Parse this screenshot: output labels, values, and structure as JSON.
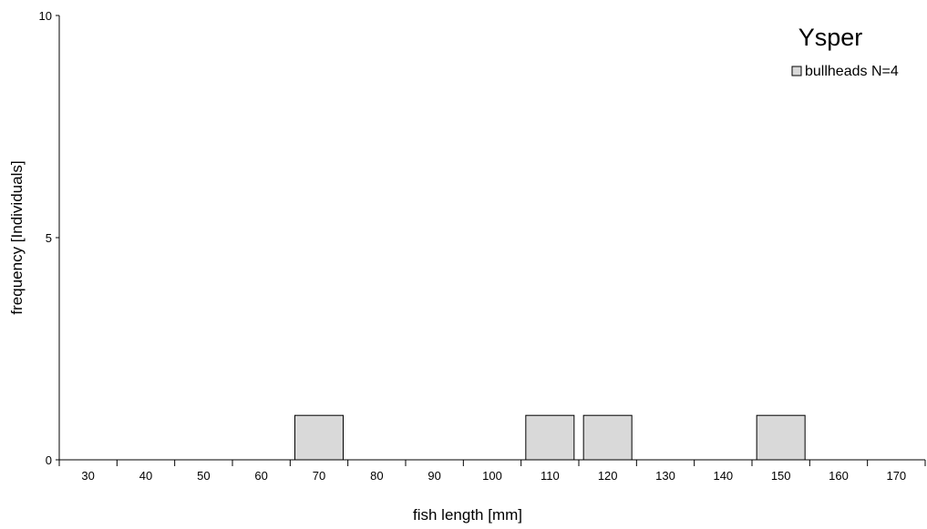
{
  "chart_data": {
    "type": "bar",
    "title": "Ysper",
    "xlabel": "fish length [mm]",
    "ylabel": "frequency [Individuals]",
    "categories": [
      "30",
      "40",
      "50",
      "60",
      "70",
      "80",
      "90",
      "100",
      "110",
      "120",
      "130",
      "140",
      "150",
      "160",
      "170"
    ],
    "series": [
      {
        "name": "bullheads N=4",
        "values": [
          0,
          0,
          0,
          0,
          1,
          0,
          0,
          0,
          1,
          1,
          0,
          0,
          1,
          0,
          0
        ],
        "color": "#d9d9d9"
      }
    ],
    "ylim": [
      0,
      10
    ],
    "yticks": [
      "0",
      "5",
      "10"
    ],
    "grid": false,
    "legend_position": "top-right"
  }
}
